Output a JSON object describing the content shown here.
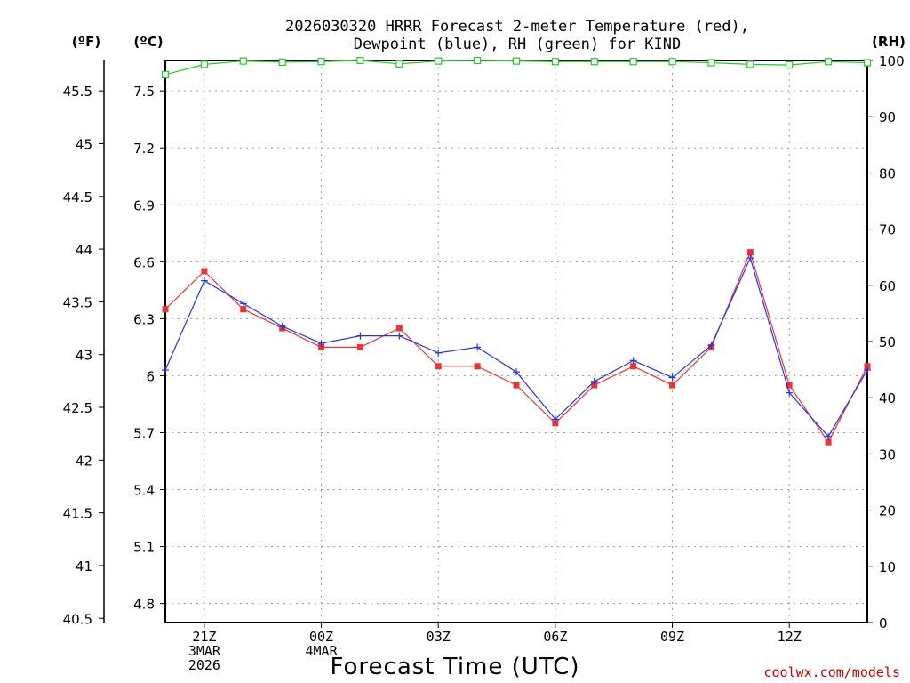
{
  "chart_data": {
    "type": "line",
    "title_line1": "2026030320 HRRR Forecast 2-meter Temperature (red),",
    "title_line2": "Dewpoint (blue), RH (green) for KIND",
    "unit_f": "(ºF)",
    "unit_c": "(ºC)",
    "unit_rh": "(RH)",
    "xlabel": "Forecast Time (UTC)",
    "credit": "coolwx.com/models",
    "x_hours": [
      20,
      21,
      22,
      23,
      24,
      25,
      26,
      27,
      28,
      29,
      30,
      31,
      32,
      33,
      34,
      35,
      36,
      37,
      38
    ],
    "x_ticks": [
      {
        "hour": 21,
        "lines": [
          "21Z",
          "3MAR",
          "2026"
        ]
      },
      {
        "hour": 24,
        "lines": [
          "00Z",
          "4MAR"
        ]
      },
      {
        "hour": 27,
        "lines": [
          "03Z"
        ]
      },
      {
        "hour": 30,
        "lines": [
          "06Z"
        ]
      },
      {
        "hour": 33,
        "lines": [
          "09Z"
        ]
      },
      {
        "hour": 36,
        "lines": [
          "12Z"
        ]
      }
    ],
    "xlim": [
      20,
      38
    ],
    "ylim_c": [
      4.7,
      7.66
    ],
    "c_ticks": [
      "4.8",
      "5.1",
      "5.4",
      "5.7",
      "6",
      "6.3",
      "6.6",
      "6.9",
      "7.2",
      "7.5"
    ],
    "f_ticks": [
      "40.5",
      "41",
      "41.5",
      "42",
      "42.5",
      "43",
      "43.5",
      "44",
      "44.5",
      "45",
      "45.5"
    ],
    "rh_ticks": [
      "0",
      "10",
      "20",
      "30",
      "40",
      "50",
      "60",
      "70",
      "80",
      "90",
      "100"
    ],
    "ylim_rh": [
      0,
      100
    ],
    "series": [
      {
        "name": "Temperature",
        "color": "#ee3333",
        "values": [
          6.35,
          6.55,
          6.35,
          6.25,
          6.15,
          6.15,
          6.25,
          6.05,
          6.05,
          5.95,
          5.75,
          5.95,
          6.05,
          5.95,
          6.15,
          6.65,
          5.95,
          5.65,
          6.05
        ]
      },
      {
        "name": "Dewpoint",
        "color": "#2233ee",
        "values": [
          6.03,
          6.5,
          6.38,
          6.26,
          6.17,
          6.21,
          6.21,
          6.12,
          6.15,
          6.02,
          5.77,
          5.97,
          6.08,
          5.99,
          6.16,
          6.62,
          5.91,
          5.68,
          6.03
        ]
      },
      {
        "name": "RH",
        "color": "#22cc22",
        "values": [
          97.5,
          99.3,
          99.9,
          99.7,
          99.8,
          100,
          99.4,
          99.9,
          100,
          99.9,
          99.8,
          99.8,
          99.8,
          99.8,
          99.6,
          99.3,
          99.2,
          99.8,
          99.6
        ]
      }
    ]
  }
}
